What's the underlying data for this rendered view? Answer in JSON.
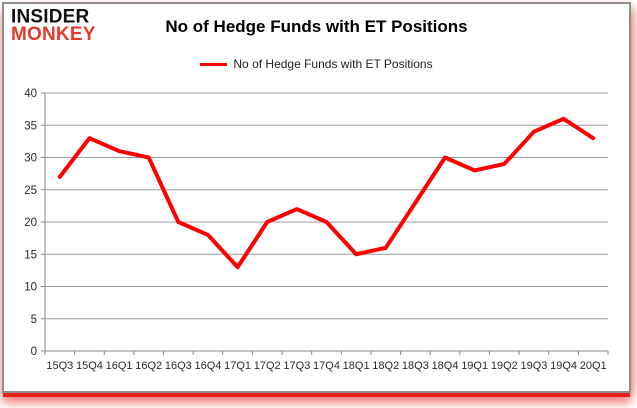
{
  "brand": {
    "line1": "INSIDER",
    "line2": "MONKEY",
    "line1_color": "#111111",
    "line2_color": "#e23b2e"
  },
  "header": {
    "title": "No of Hedge Funds with ET Positions"
  },
  "legend": {
    "label": "No of Hedge Funds with ET Positions",
    "line_color": "#fe0000"
  },
  "chart_data": {
    "type": "line",
    "title": "No of Hedge Funds with ET Positions",
    "categories": [
      "15Q3",
      "15Q4",
      "16Q1",
      "16Q2",
      "16Q3",
      "16Q4",
      "17Q1",
      "17Q2",
      "17Q3",
      "17Q4",
      "18Q1",
      "18Q2",
      "18Q3",
      "18Q4",
      "19Q1",
      "19Q2",
      "19Q3",
      "19Q4",
      "20Q1"
    ],
    "series": [
      {
        "name": "No of Hedge Funds with ET Positions",
        "color": "#fe0000",
        "values": [
          27,
          33,
          31,
          30,
          20,
          18,
          13,
          20,
          22,
          20,
          15,
          16,
          23,
          30,
          28,
          29,
          34,
          36,
          33
        ]
      }
    ],
    "xlabel": "",
    "ylabel": "",
    "ylim": [
      0,
      40
    ],
    "ytick_step": 5,
    "grid": true,
    "legend_position": "top",
    "grid_color": "#9d9d9d",
    "axis_color": "#8a8a8a",
    "tick_label_color": "#2b2b2b"
  }
}
